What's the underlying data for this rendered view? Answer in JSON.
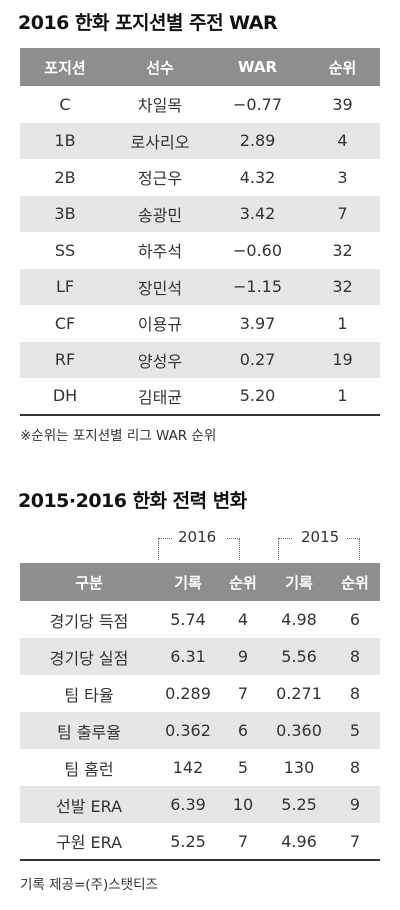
{
  "war_section": {
    "title": "2016 한화 포지션별 주전 WAR",
    "headers": [
      "포지션",
      "선수",
      "WAR",
      "순위"
    ],
    "rows": [
      {
        "pos": "C",
        "player": "차일목",
        "war": "−0.77",
        "rank": "39"
      },
      {
        "pos": "1B",
        "player": "로사리오",
        "war": "2.89",
        "rank": "4"
      },
      {
        "pos": "2B",
        "player": "정근우",
        "war": "4.32",
        "rank": "3"
      },
      {
        "pos": "3B",
        "player": "송광민",
        "war": "3.42",
        "rank": "7"
      },
      {
        "pos": "SS",
        "player": "하주석",
        "war": "−0.60",
        "rank": "32"
      },
      {
        "pos": "LF",
        "player": "장민석",
        "war": "−1.15",
        "rank": "32"
      },
      {
        "pos": "CF",
        "player": "이용규",
        "war": "3.97",
        "rank": "1"
      },
      {
        "pos": "RF",
        "player": "양성우",
        "war": "0.27",
        "rank": "19"
      },
      {
        "pos": "DH",
        "player": "김태균",
        "war": "5.20",
        "rank": "1"
      }
    ],
    "note": "※순위는 포지션별 리그 WAR 순위"
  },
  "team_section": {
    "title": "2015·2016 한화 전력 변화",
    "year_2016": "2016",
    "year_2015": "2015",
    "headers": [
      "구분",
      "기록",
      "순위",
      "기록",
      "순위"
    ],
    "rows": [
      {
        "category": "경기당 득점",
        "rec2016": "5.74",
        "rank2016": "4",
        "rec2015": "4.98",
        "rank2015": "6"
      },
      {
        "category": "경기당 실점",
        "rec2016": "6.31",
        "rank2016": "9",
        "rec2015": "5.56",
        "rank2015": "8"
      },
      {
        "category": "팀 타율",
        "rec2016": "0.289",
        "rank2016": "7",
        "rec2015": "0.271",
        "rank2015": "8"
      },
      {
        "category": "팀 출루율",
        "rec2016": "0.362",
        "rank2016": "6",
        "rec2015": "0.360",
        "rank2015": "5"
      },
      {
        "category": "팀 홈런",
        "rec2016": "142",
        "rank2016": "5",
        "rec2015": "130",
        "rank2015": "8"
      },
      {
        "category": "선발 ERA",
        "rec2016": "6.39",
        "rank2016": "10",
        "rec2015": "5.25",
        "rank2015": "9"
      },
      {
        "category": "구원 ERA",
        "rec2016": "5.25",
        "rank2016": "7",
        "rec2015": "4.96",
        "rank2015": "7"
      }
    ],
    "source": "기록 제공=(주)스탯티즈"
  }
}
